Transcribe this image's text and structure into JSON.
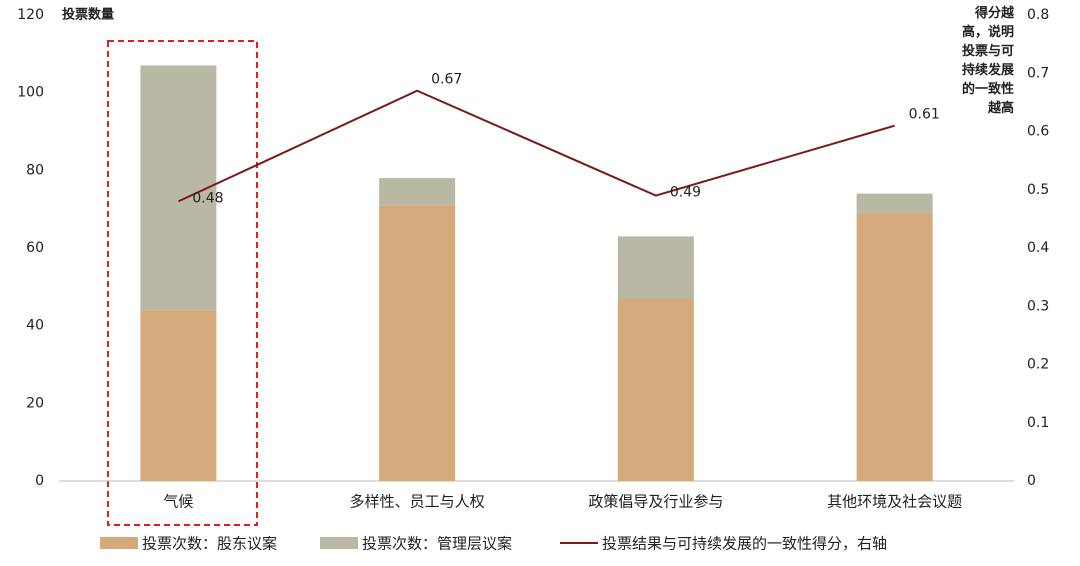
{
  "chart_data": {
    "type": "bar",
    "stacked": true,
    "categories": [
      "气候",
      "多样性、员工与人权",
      "政策倡导及行业参与",
      "其他环境及社会议题"
    ],
    "ylabel": "投票数量",
    "y2label": "得分越高，说明投票与可持续发展的一致性越高",
    "ylim": [
      0,
      120
    ],
    "yticks": [
      0,
      20,
      40,
      60,
      80,
      100,
      120
    ],
    "y2lim": [
      0,
      0.8
    ],
    "y2ticks": [
      0,
      0.1,
      0.2,
      0.3,
      0.4,
      0.5,
      0.6,
      0.7,
      0.8
    ],
    "series": [
      {
        "name": "投票次数：股东议案",
        "color": "#d4aa7d",
        "values": [
          44,
          71,
          47,
          69
        ]
      },
      {
        "name": "投票次数：管理层议案",
        "color": "#b8b8a4",
        "values": [
          63,
          7,
          16,
          5
        ]
      },
      {
        "name": "投票结果与可持续发展的一致性得分，右轴",
        "color": "#7b1a1a",
        "type": "line",
        "axis": "y2",
        "values": [
          0.48,
          0.67,
          0.49,
          0.61
        ]
      }
    ]
  }
}
